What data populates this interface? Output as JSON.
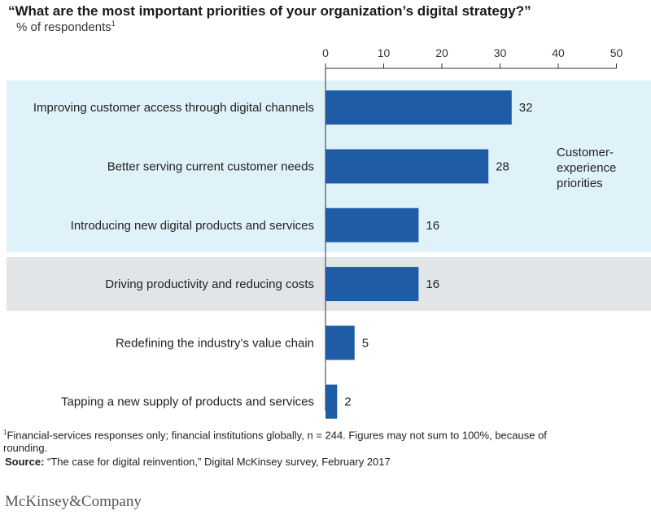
{
  "title": "“What are the most important priorities of your organization’s digital strategy?”",
  "subtitle": "% of respondents",
  "subtitle_note": "1",
  "group_label_lines": [
    "Customer-",
    "experience",
    "priorities"
  ],
  "colors": {
    "bar": "#1f5ca6",
    "customer_band": "#dff2f9",
    "cost_band": "#e2e5e7",
    "axis": "#333333"
  },
  "chart_data": {
    "type": "bar",
    "orientation": "horizontal",
    "categories": [
      "Improving customer access through digital channels",
      "Better serving current customer needs",
      "Introducing new digital products and services",
      "Driving productivity and reducing costs",
      "Redefining the industry’s value chain",
      "Tapping a new supply of products and services"
    ],
    "values": [
      32,
      28,
      16,
      16,
      5,
      2
    ],
    "xlim": [
      0,
      50
    ],
    "xticks": [
      0,
      10,
      20,
      30,
      40,
      50
    ],
    "axis_position": "top",
    "grid": false,
    "highlight_groups": [
      {
        "rows": [
          0,
          1,
          2
        ],
        "color": "#dff2f9"
      },
      {
        "rows": [
          3
        ],
        "color": "#e2e5e7"
      }
    ]
  },
  "footnote": {
    "marker": "1",
    "text": "Financial-services responses only; financial institutions globally, n = 244. Figures may not sum to 100%, because of rounding."
  },
  "source": {
    "label": "Source:",
    "text": "“The case for digital reinvention,” Digital McKinsey survey, February 2017"
  },
  "logo_text": "McKinsey&Company"
}
